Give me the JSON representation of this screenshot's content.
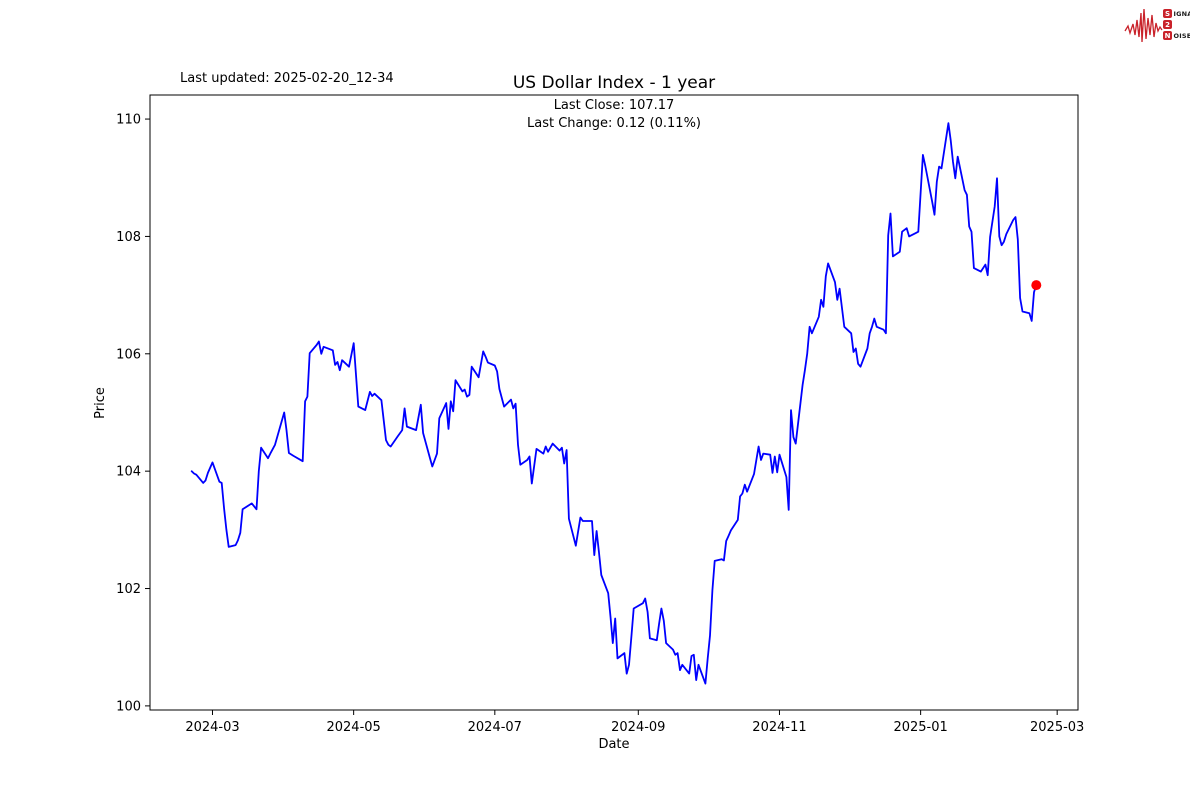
{
  "header": {
    "last_updated": "Last updated: 2025-02-20_12-34",
    "logo": {
      "color": "#c9222a",
      "word1_first": "S",
      "word1_rest": "IGNAL",
      "word2": "2",
      "word3_first": "N",
      "word3_rest": "OISE"
    }
  },
  "chart_data": {
    "type": "line",
    "title": "US Dollar Index - 1 year",
    "subtitle_line1": "Last Close: 107.17",
    "subtitle_line2": "Last Change: 0.12 (0.11%)",
    "xlabel": "Date",
    "ylabel": "Price",
    "last_close": 107.17,
    "last_change": "0.12 (0.11%)",
    "line_color": "#0000ff",
    "marker_color": "#ff0000",
    "axis_color": "#000000",
    "grid": false,
    "legend": "none",
    "ylim": [
      99.93,
      110.41
    ],
    "xlim": [
      "2024-02-03",
      "2025-03-10"
    ],
    "y_ticks": [
      100,
      102,
      104,
      106,
      108,
      110
    ],
    "x_ticks": [
      "2024-03",
      "2024-05",
      "2024-07",
      "2024-09",
      "2024-11",
      "2025-01",
      "2025-03"
    ],
    "series": [
      {
        "name": "US Dollar Index",
        "points": [
          [
            "2024-02-21",
            104.0
          ],
          [
            "2024-02-22",
            103.96
          ],
          [
            "2024-02-23",
            103.94
          ],
          [
            "2024-02-26",
            103.8
          ],
          [
            "2024-02-27",
            103.84
          ],
          [
            "2024-02-28",
            103.97
          ],
          [
            "2024-03-01",
            104.15
          ],
          [
            "2024-03-04",
            103.82
          ],
          [
            "2024-03-05",
            103.8
          ],
          [
            "2024-03-06",
            103.36
          ],
          [
            "2024-03-07",
            103.0
          ],
          [
            "2024-03-08",
            102.71
          ],
          [
            "2024-03-11",
            102.74
          ],
          [
            "2024-03-12",
            102.82
          ],
          [
            "2024-03-13",
            102.95
          ],
          [
            "2024-03-14",
            103.35
          ],
          [
            "2024-03-18",
            103.45
          ],
          [
            "2024-03-20",
            103.35
          ],
          [
            "2024-03-21",
            104.0
          ],
          [
            "2024-03-22",
            104.4
          ],
          [
            "2024-03-25",
            104.22
          ],
          [
            "2024-03-26",
            104.3
          ],
          [
            "2024-03-28",
            104.45
          ],
          [
            "2024-04-01",
            105.0
          ],
          [
            "2024-04-02",
            104.7
          ],
          [
            "2024-04-03",
            104.31
          ],
          [
            "2024-04-05",
            104.26
          ],
          [
            "2024-04-09",
            104.17
          ],
          [
            "2024-04-10",
            105.19
          ],
          [
            "2024-04-11",
            105.27
          ],
          [
            "2024-04-12",
            106.01
          ],
          [
            "2024-04-15",
            106.15
          ],
          [
            "2024-04-16",
            106.21
          ],
          [
            "2024-04-17",
            106.0
          ],
          [
            "2024-04-18",
            106.12
          ],
          [
            "2024-04-22",
            106.06
          ],
          [
            "2024-04-23",
            105.81
          ],
          [
            "2024-04-24",
            105.86
          ],
          [
            "2024-04-25",
            105.72
          ],
          [
            "2024-04-26",
            105.89
          ],
          [
            "2024-04-29",
            105.78
          ],
          [
            "2024-05-01",
            106.18
          ],
          [
            "2024-05-02",
            105.64
          ],
          [
            "2024-05-03",
            105.1
          ],
          [
            "2024-05-06",
            105.04
          ],
          [
            "2024-05-08",
            105.35
          ],
          [
            "2024-05-09",
            105.28
          ],
          [
            "2024-05-10",
            105.32
          ],
          [
            "2024-05-13",
            105.21
          ],
          [
            "2024-05-15",
            104.53
          ],
          [
            "2024-05-16",
            104.45
          ],
          [
            "2024-05-17",
            104.42
          ],
          [
            "2024-05-20",
            104.59
          ],
          [
            "2024-05-22",
            104.7
          ],
          [
            "2024-05-23",
            105.07
          ],
          [
            "2024-05-24",
            104.76
          ],
          [
            "2024-05-28",
            104.7
          ],
          [
            "2024-05-30",
            105.13
          ],
          [
            "2024-05-31",
            104.65
          ],
          [
            "2024-06-03",
            104.22
          ],
          [
            "2024-06-04",
            104.08
          ],
          [
            "2024-06-06",
            104.3
          ],
          [
            "2024-06-07",
            104.9
          ],
          [
            "2024-06-10",
            105.16
          ],
          [
            "2024-06-11",
            104.72
          ],
          [
            "2024-06-12",
            105.19
          ],
          [
            "2024-06-13",
            105.02
          ],
          [
            "2024-06-14",
            105.55
          ],
          [
            "2024-06-17",
            105.36
          ],
          [
            "2024-06-18",
            105.39
          ],
          [
            "2024-06-19",
            105.27
          ],
          [
            "2024-06-20",
            105.3
          ],
          [
            "2024-06-21",
            105.78
          ],
          [
            "2024-06-24",
            105.6
          ],
          [
            "2024-06-26",
            106.04
          ],
          [
            "2024-06-27",
            105.95
          ],
          [
            "2024-06-28",
            105.85
          ],
          [
            "2024-07-01",
            105.8
          ],
          [
            "2024-07-02",
            105.7
          ],
          [
            "2024-07-03",
            105.4
          ],
          [
            "2024-07-05",
            105.1
          ],
          [
            "2024-07-08",
            105.22
          ],
          [
            "2024-07-09",
            105.07
          ],
          [
            "2024-07-10",
            105.15
          ],
          [
            "2024-07-11",
            104.45
          ],
          [
            "2024-07-12",
            104.11
          ],
          [
            "2024-07-15",
            104.19
          ],
          [
            "2024-07-16",
            104.25
          ],
          [
            "2024-07-17",
            103.79
          ],
          [
            "2024-07-19",
            104.38
          ],
          [
            "2024-07-22",
            104.3
          ],
          [
            "2024-07-23",
            104.42
          ],
          [
            "2024-07-24",
            104.33
          ],
          [
            "2024-07-26",
            104.47
          ],
          [
            "2024-07-29",
            104.35
          ],
          [
            "2024-07-30",
            104.4
          ],
          [
            "2024-07-31",
            104.13
          ],
          [
            "2024-08-01",
            104.36
          ],
          [
            "2024-08-02",
            103.19
          ],
          [
            "2024-08-05",
            102.73
          ],
          [
            "2024-08-07",
            103.21
          ],
          [
            "2024-08-08",
            103.15
          ],
          [
            "2024-08-12",
            103.15
          ],
          [
            "2024-08-13",
            102.57
          ],
          [
            "2024-08-14",
            102.98
          ],
          [
            "2024-08-15",
            102.61
          ],
          [
            "2024-08-16",
            102.23
          ],
          [
            "2024-08-19",
            101.92
          ],
          [
            "2024-08-20",
            101.52
          ],
          [
            "2024-08-21",
            101.07
          ],
          [
            "2024-08-22",
            101.49
          ],
          [
            "2024-08-23",
            100.81
          ],
          [
            "2024-08-26",
            100.9
          ],
          [
            "2024-08-27",
            100.55
          ],
          [
            "2024-08-28",
            100.7
          ],
          [
            "2024-08-29",
            101.18
          ],
          [
            "2024-08-30",
            101.66
          ],
          [
            "2024-09-03",
            101.75
          ],
          [
            "2024-09-04",
            101.83
          ],
          [
            "2024-09-05",
            101.6
          ],
          [
            "2024-09-06",
            101.15
          ],
          [
            "2024-09-09",
            101.12
          ],
          [
            "2024-09-10",
            101.4
          ],
          [
            "2024-09-11",
            101.66
          ],
          [
            "2024-09-12",
            101.45
          ],
          [
            "2024-09-13",
            101.07
          ],
          [
            "2024-09-16",
            100.96
          ],
          [
            "2024-09-17",
            100.87
          ],
          [
            "2024-09-18",
            100.9
          ],
          [
            "2024-09-19",
            100.61
          ],
          [
            "2024-09-20",
            100.7
          ],
          [
            "2024-09-23",
            100.55
          ],
          [
            "2024-09-24",
            100.85
          ],
          [
            "2024-09-25",
            100.87
          ],
          [
            "2024-09-26",
            100.44
          ],
          [
            "2024-09-27",
            100.7
          ],
          [
            "2024-09-30",
            100.38
          ],
          [
            "2024-10-01",
            100.81
          ],
          [
            "2024-10-02",
            101.2
          ],
          [
            "2024-10-03",
            101.97
          ],
          [
            "2024-10-04",
            102.47
          ],
          [
            "2024-10-07",
            102.5
          ],
          [
            "2024-10-08",
            102.48
          ],
          [
            "2024-10-09",
            102.81
          ],
          [
            "2024-10-10",
            102.9
          ],
          [
            "2024-10-11",
            102.99
          ],
          [
            "2024-10-14",
            103.17
          ],
          [
            "2024-10-15",
            103.57
          ],
          [
            "2024-10-16",
            103.62
          ],
          [
            "2024-10-17",
            103.77
          ],
          [
            "2024-10-18",
            103.65
          ],
          [
            "2024-10-21",
            103.95
          ],
          [
            "2024-10-23",
            104.42
          ],
          [
            "2024-10-24",
            104.19
          ],
          [
            "2024-10-25",
            104.3
          ],
          [
            "2024-10-28",
            104.28
          ],
          [
            "2024-10-29",
            103.97
          ],
          [
            "2024-10-30",
            104.25
          ],
          [
            "2024-10-31",
            103.98
          ],
          [
            "2024-11-01",
            104.28
          ],
          [
            "2024-11-04",
            103.9
          ],
          [
            "2024-11-05",
            103.34
          ],
          [
            "2024-11-06",
            105.04
          ],
          [
            "2024-11-07",
            104.58
          ],
          [
            "2024-11-08",
            104.47
          ],
          [
            "2024-11-11",
            105.47
          ],
          [
            "2024-11-12",
            105.72
          ],
          [
            "2024-11-13",
            106.0
          ],
          [
            "2024-11-14",
            106.46
          ],
          [
            "2024-11-15",
            106.35
          ],
          [
            "2024-11-18",
            106.63
          ],
          [
            "2024-11-19",
            106.92
          ],
          [
            "2024-11-20",
            106.8
          ],
          [
            "2024-11-21",
            107.32
          ],
          [
            "2024-11-22",
            107.54
          ],
          [
            "2024-11-25",
            107.22
          ],
          [
            "2024-11-26",
            106.92
          ],
          [
            "2024-11-27",
            107.11
          ],
          [
            "2024-11-29",
            106.46
          ],
          [
            "2024-12-02",
            106.35
          ],
          [
            "2024-12-03",
            106.03
          ],
          [
            "2024-12-04",
            106.09
          ],
          [
            "2024-12-05",
            105.83
          ],
          [
            "2024-12-06",
            105.78
          ],
          [
            "2024-12-09",
            106.09
          ],
          [
            "2024-12-10",
            106.35
          ],
          [
            "2024-12-11",
            106.46
          ],
          [
            "2024-12-12",
            106.6
          ],
          [
            "2024-12-13",
            106.46
          ],
          [
            "2024-12-16",
            106.41
          ],
          [
            "2024-12-17",
            106.35
          ],
          [
            "2024-12-18",
            108.02
          ],
          [
            "2024-12-19",
            108.39
          ],
          [
            "2024-12-20",
            107.66
          ],
          [
            "2024-12-23",
            107.74
          ],
          [
            "2024-12-24",
            108.08
          ],
          [
            "2024-12-26",
            108.14
          ],
          [
            "2024-12-27",
            108.0
          ],
          [
            "2024-12-30",
            108.06
          ],
          [
            "2024-12-31",
            108.08
          ],
          [
            "2025-01-02",
            109.39
          ],
          [
            "2025-01-03",
            109.2
          ],
          [
            "2025-01-06",
            108.59
          ],
          [
            "2025-01-07",
            108.37
          ],
          [
            "2025-01-08",
            108.93
          ],
          [
            "2025-01-09",
            109.19
          ],
          [
            "2025-01-10",
            109.16
          ],
          [
            "2025-01-13",
            109.93
          ],
          [
            "2025-01-14",
            109.64
          ],
          [
            "2025-01-15",
            109.27
          ],
          [
            "2025-01-16",
            108.99
          ],
          [
            "2025-01-17",
            109.36
          ],
          [
            "2025-01-20",
            108.79
          ],
          [
            "2025-01-21",
            108.71
          ],
          [
            "2025-01-22",
            108.17
          ],
          [
            "2025-01-23",
            108.08
          ],
          [
            "2025-01-24",
            107.46
          ],
          [
            "2025-01-27",
            107.4
          ],
          [
            "2025-01-28",
            107.46
          ],
          [
            "2025-01-29",
            107.52
          ],
          [
            "2025-01-30",
            107.34
          ],
          [
            "2025-01-31",
            107.99
          ],
          [
            "2025-02-02",
            108.51
          ],
          [
            "2025-02-03",
            108.99
          ],
          [
            "2025-02-04",
            108.0
          ],
          [
            "2025-02-05",
            107.85
          ],
          [
            "2025-02-06",
            107.91
          ],
          [
            "2025-02-07",
            108.04
          ],
          [
            "2025-02-10",
            108.28
          ],
          [
            "2025-02-11",
            108.33
          ],
          [
            "2025-02-12",
            107.95
          ],
          [
            "2025-02-13",
            106.95
          ],
          [
            "2025-02-14",
            106.72
          ],
          [
            "2025-02-17",
            106.69
          ],
          [
            "2025-02-18",
            106.56
          ],
          [
            "2025-02-19",
            107.05
          ],
          [
            "2025-02-20",
            107.17
          ]
        ]
      }
    ]
  }
}
